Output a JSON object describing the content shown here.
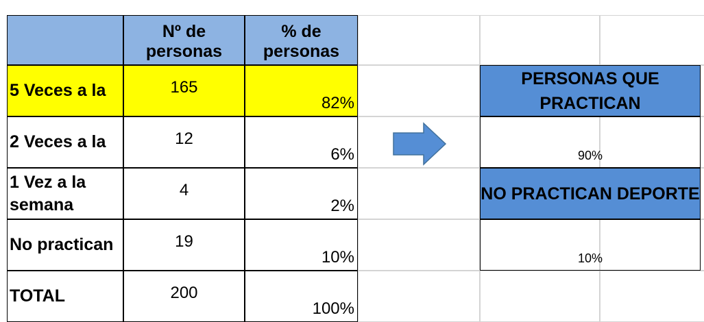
{
  "table": {
    "headers": [
      "Nº de personas",
      "% de personas"
    ],
    "rows": [
      [
        "5 Veces a la",
        165,
        "82%"
      ],
      [
        "2 Veces a la",
        12,
        "6%"
      ],
      [
        "1 Vez a la semana",
        4,
        "2%"
      ],
      [
        "No practican",
        19,
        "10%"
      ],
      [
        "TOTAL",
        200,
        "100%"
      ]
    ]
  },
  "summary": [
    {
      "label": "PERSONAS QUE PRACTICAN",
      "value": "90%"
    },
    {
      "label": "NO PRACTICAN DEPORTE",
      "value": "10%"
    }
  ]
}
